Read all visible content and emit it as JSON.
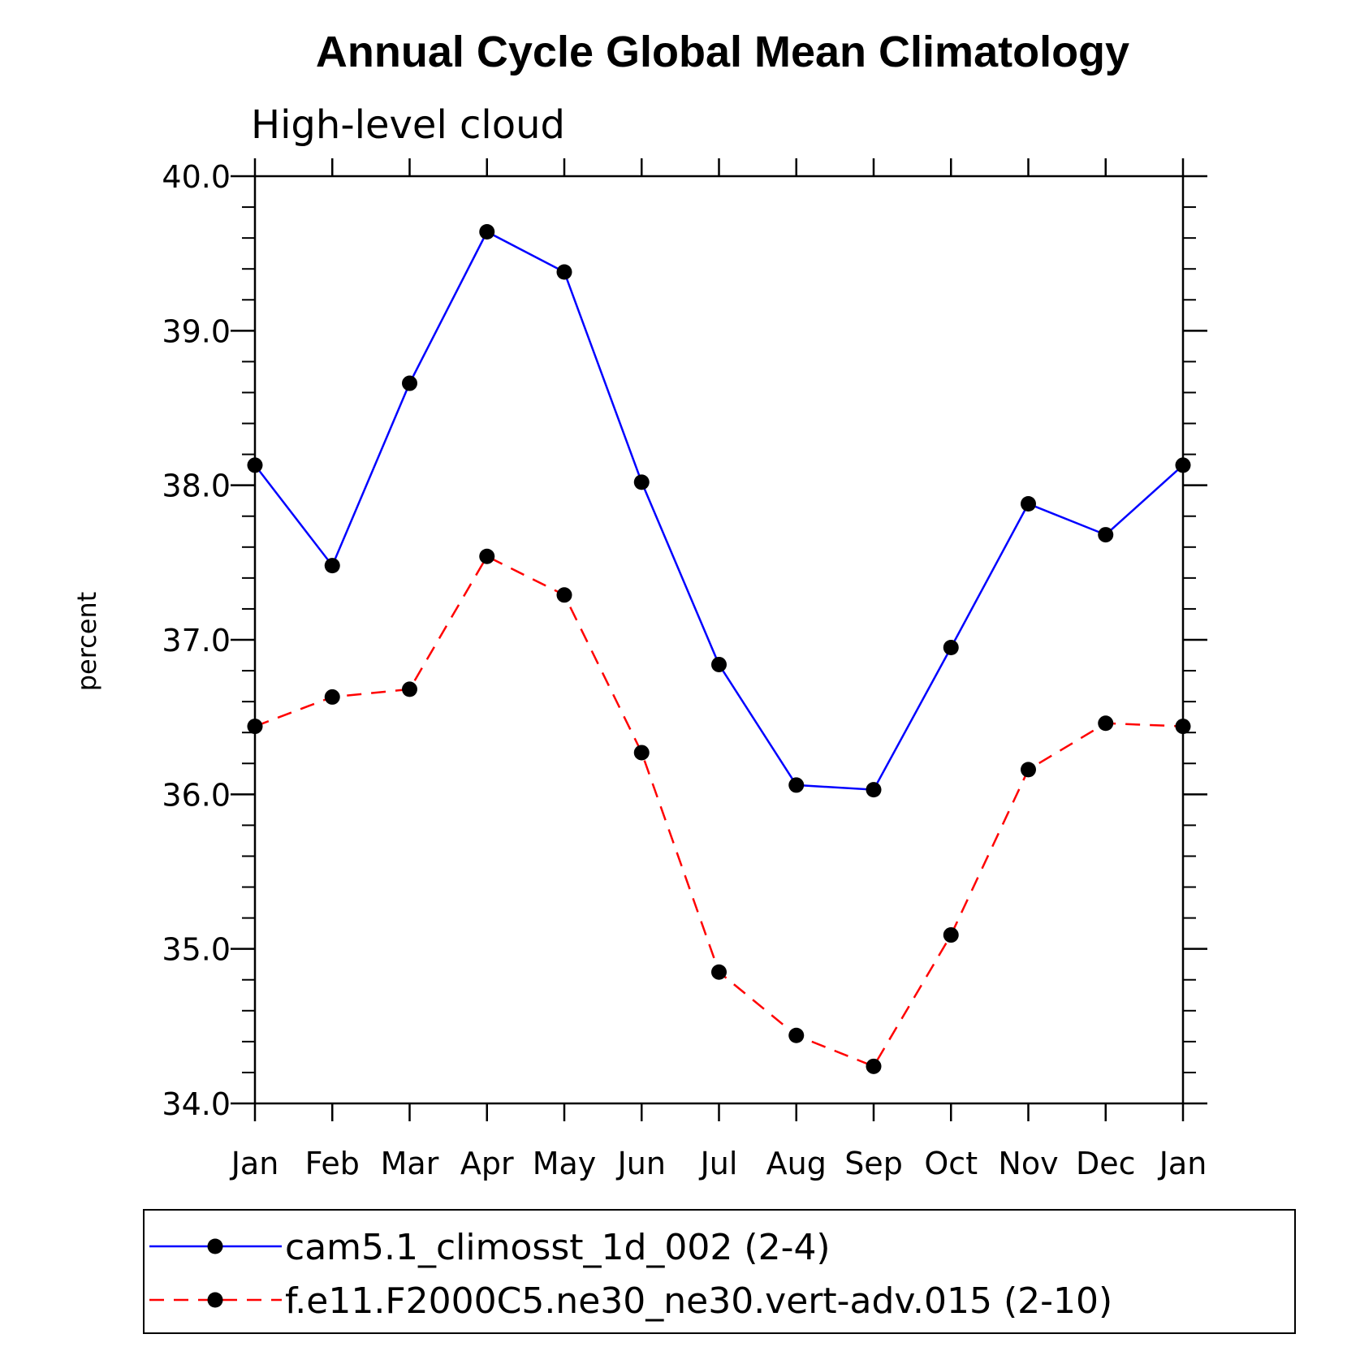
{
  "chart_data": {
    "type": "line",
    "title": "Annual Cycle Global Mean Climatology",
    "subtitle": "High-level cloud",
    "xlabel": "",
    "ylabel": "percent",
    "categories": [
      "Jan",
      "Feb",
      "Mar",
      "Apr",
      "May",
      "Jun",
      "Jul",
      "Aug",
      "Sep",
      "Oct",
      "Nov",
      "Dec",
      "Jan"
    ],
    "ylim": [
      34.0,
      40.0
    ],
    "yticks": [
      "34.0",
      "35.0",
      "36.0",
      "37.0",
      "38.0",
      "39.0",
      "40.0"
    ],
    "grid": false,
    "series": [
      {
        "name": "cam5.1_climosst_1d_002 (2-4)",
        "color": "#0000ff",
        "dash": "solid",
        "values": [
          38.13,
          37.48,
          38.66,
          39.64,
          39.38,
          38.02,
          36.84,
          36.06,
          36.03,
          36.95,
          37.88,
          37.68,
          38.13
        ]
      },
      {
        "name": "f.e11.F2000C5.ne30_ne30.vert-adv.015 (2-10)",
        "color": "#ff0000",
        "dash": "dashed",
        "values": [
          36.44,
          36.63,
          36.68,
          37.54,
          37.29,
          36.27,
          34.85,
          34.44,
          34.24,
          35.09,
          36.16,
          36.46,
          36.44
        ]
      }
    ],
    "legend_position": "bottom"
  }
}
